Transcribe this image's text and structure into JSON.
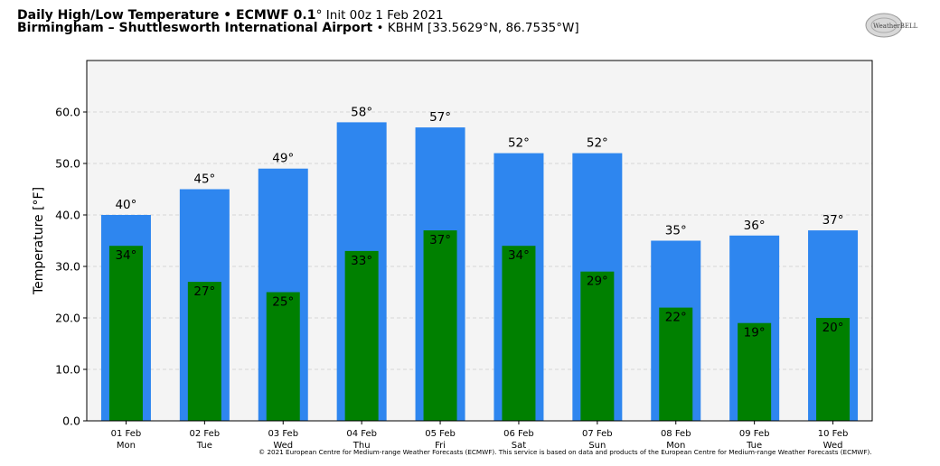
{
  "header": {
    "title_main": "Daily High/Low Temperature • ECMWF 0.1",
    "title_deg": "°",
    "title_init": " Init 00z 1 Feb 2021",
    "location_name": "Birmingham – Shuttlesworth International Airport",
    "location_detail": " • KBHM [33.5629°N, 86.7535°W]"
  },
  "logo": {
    "icon": "weatherbell-logo",
    "text": "WeatherBELL"
  },
  "credit": "© 2021 European Centre for Medium-range Weather Forecasts (ECMWF). This service is based on data and products of the European Centre for Medium-range Weather Forecasts (ECMWF).",
  "colors": {
    "high": "#2e86ef",
    "low": "#008000",
    "plot_bg": "#f4f4f4",
    "grid": "#cccccc"
  },
  "chart_data": {
    "type": "bar",
    "ylabel": "Temperature [°F]",
    "ylim": [
      0,
      70
    ],
    "yticks": [
      "0.0",
      "10.0",
      "20.0",
      "30.0",
      "40.0",
      "50.0",
      "60.0"
    ],
    "ytick_values": [
      0,
      10,
      20,
      30,
      40,
      50,
      60
    ],
    "grid": true,
    "categories": [
      [
        "01 Feb",
        "Mon"
      ],
      [
        "02 Feb",
        "Tue"
      ],
      [
        "03 Feb",
        "Wed"
      ],
      [
        "04 Feb",
        "Thu"
      ],
      [
        "05 Feb",
        "Fri"
      ],
      [
        "06 Feb",
        "Sat"
      ],
      [
        "07 Feb",
        "Sun"
      ],
      [
        "08 Feb",
        "Mon"
      ],
      [
        "09 Feb",
        "Tue"
      ],
      [
        "10 Feb",
        "Wed"
      ]
    ],
    "series": [
      {
        "values": [
          40,
          45,
          49,
          58,
          57,
          52,
          52,
          35,
          36,
          37
        ],
        "labels": [
          "40°",
          "45°",
          "49°",
          "58°",
          "57°",
          "52°",
          "52°",
          "35°",
          "36°",
          "37°"
        ]
      },
      {
        "values": [
          34,
          27,
          25,
          33,
          37,
          34,
          29,
          22,
          19,
          20
        ],
        "labels": [
          "34°",
          "27°",
          "25°",
          "33°",
          "37°",
          "34°",
          "29°",
          "22°",
          "19°",
          "20°"
        ]
      }
    ]
  }
}
